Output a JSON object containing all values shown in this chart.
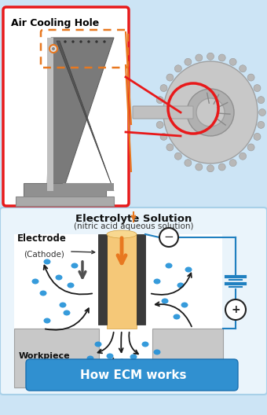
{
  "bg_color": "#cce4f5",
  "top_section_bg": "#cce4f5",
  "red_box_bg": "#ffffff",
  "red_box_border": "#e8191a",
  "bottom_section_bg": "#daeef8",
  "bottom_box_border": "#a8d0e8",
  "title_text": "Air Cooling Hole",
  "electrolyte_title": "Electrolyte Solution",
  "electrolyte_subtitle": "(nitric acid aqueous solution)",
  "electrode_label": "Electrode",
  "electrode_sub": "(Cathode)",
  "workpiece_label": "Workpiece",
  "footer_text": "How ECM works",
  "footer_bg": "#3090d0",
  "footer_text_color": "#ffffff",
  "orange_color": "#e87820",
  "blue_dot_color": "#2090d8",
  "electrode_fill": "#f5c878",
  "electrode_dark": "#404040",
  "wire_color": "#2080c0",
  "capacitor_color": "#2080c0",
  "arrow_down_color": "#505050",
  "flow_arrow_color": "#1a1a1a",
  "workpiece_color": "#c8c8c8",
  "workpiece_edge": "#a0a0a0"
}
